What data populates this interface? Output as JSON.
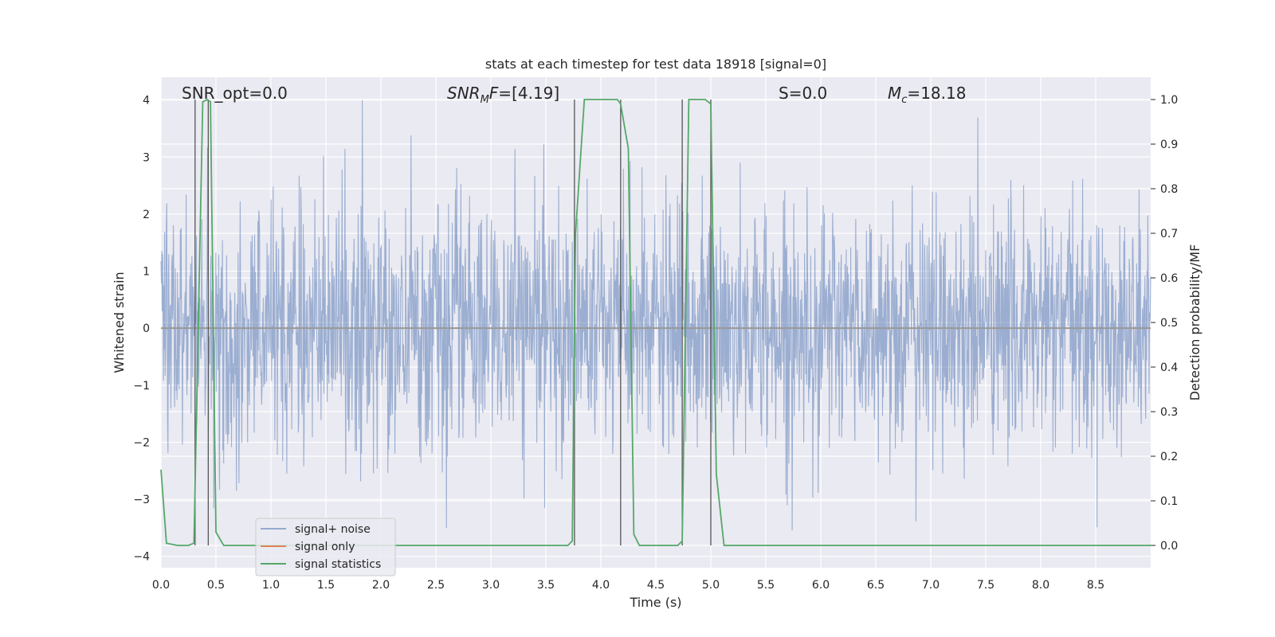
{
  "chart_data": {
    "type": "line",
    "title": "stats at each timestep for test data 18918 [signal=0]",
    "xlabel": "Time (s)",
    "ylabel": "Whitened strain",
    "y2label": "Detection probability/MF",
    "xlim": [
      0.0,
      9.0
    ],
    "ylim": [
      -4.2,
      4.4
    ],
    "y2lim": [
      -0.05,
      1.05
    ],
    "xticks": [
      "0.0",
      "0.5",
      "1.0",
      "1.5",
      "2.0",
      "2.5",
      "3.0",
      "3.5",
      "4.0",
      "4.5",
      "5.0",
      "5.5",
      "6.0",
      "6.5",
      "7.0",
      "7.5",
      "8.0",
      "8.5"
    ],
    "yticks": [
      "4",
      "3",
      "2",
      "1",
      "0",
      "−1",
      "−2",
      "−3",
      "−4"
    ],
    "y2ticks": [
      "1.0",
      "0.9",
      "0.8",
      "0.7",
      "0.6",
      "0.5",
      "0.4",
      "0.3",
      "0.2",
      "0.1",
      "0.0"
    ],
    "grid": true,
    "legend_position": "lower-left",
    "colors": {
      "noise": "#4c72b0",
      "signal": "#dd8452",
      "stats": "#55a868",
      "markers": "#555555",
      "background": "#eaeaf2"
    },
    "annotations": {
      "snr_opt": "SNR_opt=0.0",
      "snr_mf": "[4.19]",
      "s": "S=0.0",
      "mc": "18.18"
    },
    "series": [
      {
        "name": "signal+ noise",
        "axis": "left",
        "description_values": {
          "typical_range": [
            -2.5,
            3.0
          ],
          "extremes": [
            -3.8,
            4.0
          ]
        }
      },
      {
        "name": "signal only",
        "axis": "left",
        "x": [
          0.0,
          9.0
        ],
        "values": [
          0.0,
          0.0
        ]
      },
      {
        "name": "signal statistics",
        "axis": "right",
        "x": [
          0.0,
          0.05,
          0.15,
          0.25,
          0.3,
          0.38,
          0.42,
          0.45,
          0.5,
          0.57,
          0.75,
          1.0,
          2.0,
          3.0,
          3.7,
          3.74,
          3.77,
          3.85,
          4.0,
          4.15,
          4.18,
          4.25,
          4.3,
          4.35,
          4.7,
          4.74,
          4.8,
          4.95,
          5.0,
          5.05,
          5.12,
          5.5,
          6.0,
          7.0,
          8.0,
          9.0
        ],
        "values": [
          0.17,
          0.005,
          0.0,
          0.0,
          0.005,
          0.995,
          1.0,
          0.995,
          0.03,
          0.0,
          0.0,
          0.0,
          0.0,
          0.0,
          0.0,
          0.01,
          0.7,
          1.0,
          1.0,
          1.0,
          0.99,
          0.89,
          0.025,
          0.0,
          0.0,
          0.01,
          1.0,
          1.0,
          0.99,
          0.16,
          0.0,
          0.0,
          0.0,
          0.0,
          0.0,
          0.0
        ]
      }
    ],
    "vertical_markers": [
      {
        "x": 0.31,
        "top": 1.0
      },
      {
        "x": 0.43,
        "top": 1.0
      },
      {
        "x": 3.76,
        "top": 1.0
      },
      {
        "x": 4.18,
        "top": 1.0
      },
      {
        "x": 4.74,
        "top": 1.0
      },
      {
        "x": 5.0,
        "top": 1.0
      }
    ]
  }
}
